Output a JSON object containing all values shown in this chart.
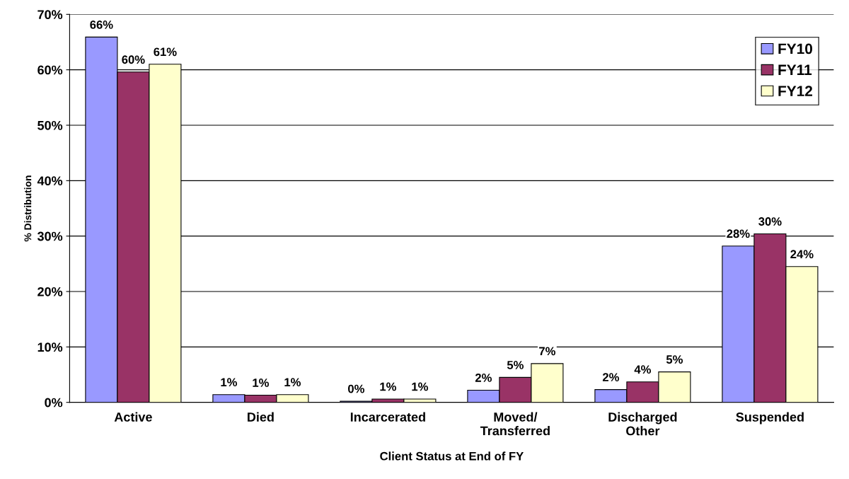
{
  "chart_data": {
    "type": "bar",
    "xlabel": "Client Status at End of FY",
    "ylabel": "% Distribution",
    "categories": [
      "Active",
      "Died",
      "Incarcerated",
      "Moved/\nTransferred",
      "Discharged\nOther",
      "Suspended"
    ],
    "series": [
      {
        "name": "FY10",
        "color": "#9999ff",
        "values": [
          65.9,
          1.4,
          0.2,
          2.2,
          2.3,
          28.2
        ],
        "value_labels": [
          "66%",
          "1%",
          "0%",
          "2%",
          "2%",
          "28%"
        ]
      },
      {
        "name": "FY11",
        "color": "#993366",
        "values": [
          59.6,
          1.3,
          0.6,
          4.5,
          3.7,
          30.4
        ],
        "value_labels": [
          "60%",
          "1%",
          "1%",
          "5%",
          "4%",
          "30%"
        ]
      },
      {
        "name": "FY12",
        "color": "#ffffcc",
        "values": [
          61.0,
          1.4,
          0.6,
          7.0,
          5.5,
          24.5
        ],
        "value_labels": [
          "61%",
          "1%",
          "1%",
          "7%",
          "5%",
          "24%"
        ]
      }
    ],
    "ylim": [
      0,
      70
    ],
    "yticks": [
      {
        "value": 0,
        "label": "0%"
      },
      {
        "value": 10,
        "label": "10%"
      },
      {
        "value": 20,
        "label": "20%"
      },
      {
        "value": 30,
        "label": "30%"
      },
      {
        "value": 40,
        "label": "40%"
      },
      {
        "value": 50,
        "label": "50%"
      },
      {
        "value": 60,
        "label": "60%"
      },
      {
        "value": 70,
        "label": "70%"
      }
    ],
    "grid": "y",
    "legend": "top right"
  }
}
